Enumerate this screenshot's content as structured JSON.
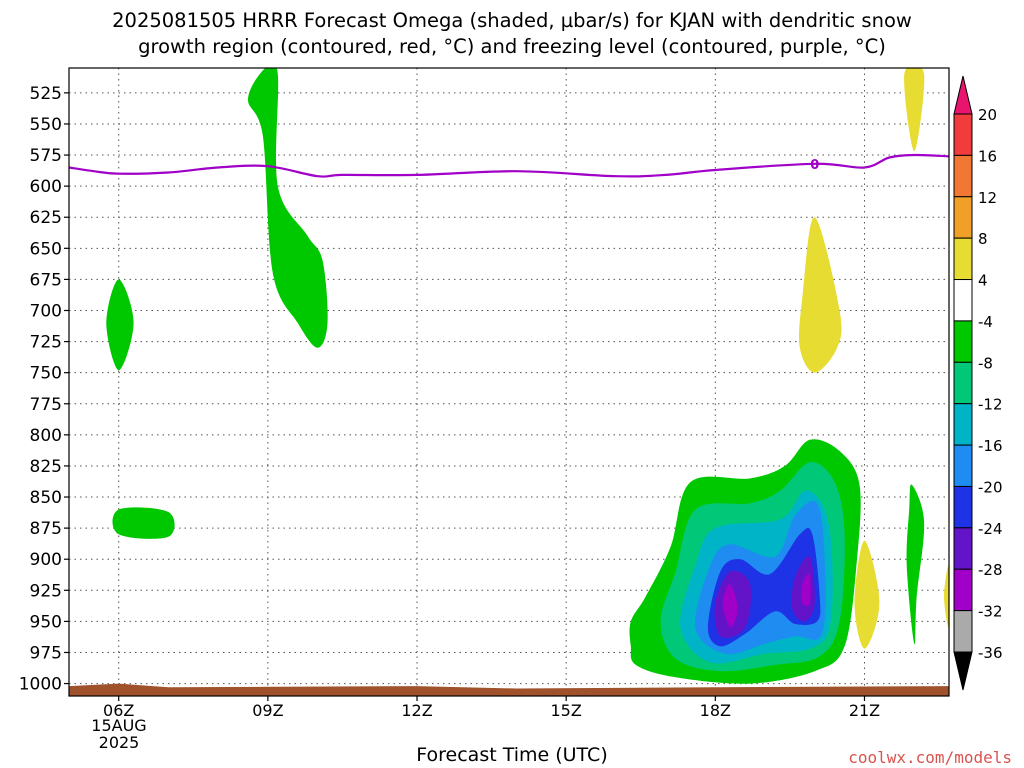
{
  "header": {
    "title_line1": "2025081505 HRRR Forecast Omega (shaded, µbar/s) for KJAN with dendritic snow",
    "title_line2": "growth region (contoured, red, °C) and freezing level (contoured, purple, °C)"
  },
  "footer": {
    "date_day": "15AUG",
    "date_year": "2025",
    "watermark": "coolwx.com/models"
  },
  "chart_data": {
    "type": "heatmap",
    "title": "2025081505 HRRR Forecast Omega (shaded, µbar/s) for KJAN with dendritic snow growth region (contoured, red, °C) and freezing level (contoured, purple, °C)",
    "xlabel": "Forecast Time (UTC)",
    "ylabel": "",
    "x_unit": "forecast hour (UTC)",
    "xlim": [
      5,
      22.7
    ],
    "y_unit": "hPa",
    "ylim": [
      1010,
      505
    ],
    "y_inverted": true,
    "grid": true,
    "x_ticks": [
      {
        "value": 6,
        "label": "06Z"
      },
      {
        "value": 9,
        "label": "09Z"
      },
      {
        "value": 12,
        "label": "12Z"
      },
      {
        "value": 15,
        "label": "15Z"
      },
      {
        "value": 18,
        "label": "18Z"
      },
      {
        "value": 21,
        "label": "21Z"
      }
    ],
    "y_ticks": [
      525,
      550,
      575,
      600,
      625,
      650,
      675,
      700,
      725,
      750,
      775,
      800,
      825,
      850,
      875,
      900,
      925,
      950,
      975,
      1000
    ],
    "colorbar": {
      "labels": [
        "20",
        "16",
        "12",
        "8",
        "4",
        "-4",
        "-8",
        "-12",
        "-16",
        "-20",
        "-24",
        "-28",
        "-32",
        "-36"
      ],
      "colors": [
        "#e8146e",
        "#f03c3c",
        "#f07832",
        "#f0a028",
        "#e6dc32",
        "#ffffff",
        "#00c800",
        "#00c878",
        "#00b4c8",
        "#1e8cf0",
        "#1e32e6",
        "#6414c8",
        "#a000c8",
        "#aaaaaa",
        "#000000"
      ]
    },
    "freezing_level": {
      "color": "#a000c8",
      "contour_label": "0",
      "points": [
        [
          5,
          585
        ],
        [
          5.5,
          588
        ],
        [
          6,
          590
        ],
        [
          7,
          589
        ],
        [
          8,
          585
        ],
        [
          9,
          584
        ],
        [
          10,
          592
        ],
        [
          10.5,
          591
        ],
        [
          12,
          591
        ],
        [
          14,
          588
        ],
        [
          16,
          592
        ],
        [
          17,
          591
        ],
        [
          18,
          587
        ],
        [
          20,
          582
        ],
        [
          21,
          585
        ],
        [
          21.5,
          577
        ],
        [
          22,
          575
        ],
        [
          22.7,
          576
        ]
      ]
    },
    "shaded_regions": [
      {
        "name": "Omega -4 to -8 (08Z-10Z, 505-730 hPa)",
        "color": "#00c800",
        "points": [
          [
            8.6,
            530
          ],
          [
            8.95,
            505
          ],
          [
            9.2,
            510
          ],
          [
            9.2,
            600
          ],
          [
            9.8,
            640
          ],
          [
            10.1,
            660
          ],
          [
            10.2,
            710
          ],
          [
            10,
            730
          ],
          [
            9.6,
            710
          ],
          [
            9.1,
            670
          ],
          [
            8.9,
            560
          ]
        ]
      },
      {
        "name": "Omega -4 to -8 (06Z, 700 hPa)",
        "color": "#00c800",
        "points": [
          [
            6,
            675
          ],
          [
            6.3,
            710
          ],
          [
            6,
            748
          ],
          [
            5.75,
            710
          ]
        ]
      },
      {
        "name": "Omega -4 to -8 (06Z-07Z, 865 hPa)",
        "color": "#00c800",
        "points": [
          [
            6,
            860
          ],
          [
            7,
            862
          ],
          [
            7,
            882
          ],
          [
            6,
            880
          ]
        ]
      },
      {
        "name": "Omega 4 to 8 (20Z, 700 hPa)",
        "color": "#e6dc32",
        "points": [
          [
            20,
            625
          ],
          [
            20.5,
            700
          ],
          [
            20.45,
            730
          ],
          [
            20,
            750
          ],
          [
            19.7,
            730
          ],
          [
            19.75,
            690
          ]
        ]
      },
      {
        "name": "Omega 4 to 8 (22Z, 520 hPa)",
        "color": "#e6dc32",
        "points": [
          [
            21.8,
            510
          ],
          [
            22.2,
            510
          ],
          [
            22,
            572
          ]
        ]
      },
      {
        "name": "Omega 4 to 8 (21Z, 930 hPa)",
        "color": "#e6dc32",
        "points": [
          [
            21,
            885
          ],
          [
            21.3,
            935
          ],
          [
            21,
            972
          ],
          [
            20.8,
            935
          ]
        ]
      },
      {
        "name": "Omega -4 to -8 (22Z, 890 hPa)",
        "color": "#00c800",
        "points": [
          [
            21.95,
            840
          ],
          [
            22.2,
            870
          ],
          [
            22.05,
            930
          ],
          [
            22,
            968
          ],
          [
            21.85,
            905
          ],
          [
            21.9,
            860
          ]
        ]
      },
      {
        "name": "Omega 4 to 8 (edge, 930 hPa)",
        "color": "#e6dc32",
        "points": [
          [
            22.7,
            905
          ],
          [
            22.7,
            955
          ],
          [
            22.6,
            930
          ]
        ]
      },
      {
        "name": "Omega -4 to -8 (16Z-21Z, 800-1000 hPa)",
        "color": "#00c800",
        "points": [
          [
            16.3,
            950
          ],
          [
            16.6,
            930
          ],
          [
            17.1,
            890
          ],
          [
            17.5,
            838
          ],
          [
            18.7,
            835
          ],
          [
            19.4,
            825
          ],
          [
            19.9,
            804
          ],
          [
            20.5,
            813
          ],
          [
            20.9,
            840
          ],
          [
            20.85,
            900
          ],
          [
            20.6,
            970
          ],
          [
            20,
            990
          ],
          [
            18.7,
            1000
          ],
          [
            17.2,
            995
          ],
          [
            16.4,
            985
          ],
          [
            16.3,
            970
          ]
        ]
      },
      {
        "name": "Omega -8 to -12",
        "color": "#00c878",
        "points": [
          [
            16.9,
            950
          ],
          [
            17.2,
            910
          ],
          [
            17.6,
            860
          ],
          [
            18.7,
            855
          ],
          [
            19.3,
            845
          ],
          [
            19.9,
            822
          ],
          [
            20.4,
            838
          ],
          [
            20.6,
            880
          ],
          [
            20.5,
            950
          ],
          [
            20.1,
            978
          ],
          [
            19.2,
            985
          ],
          [
            18.1,
            990
          ],
          [
            17.2,
            980
          ]
        ]
      },
      {
        "name": "Omega -12 to -16",
        "color": "#00b4c8",
        "points": [
          [
            17.3,
            955
          ],
          [
            17.6,
            905
          ],
          [
            18,
            875
          ],
          [
            19.3,
            868
          ],
          [
            19.8,
            845
          ],
          [
            20.2,
            860
          ],
          [
            20.35,
            900
          ],
          [
            20.3,
            955
          ],
          [
            19.9,
            972
          ],
          [
            19,
            976
          ],
          [
            17.9,
            983
          ]
        ]
      },
      {
        "name": "Omega -16 to -20",
        "color": "#1e8cf0",
        "points": [
          [
            17.6,
            955
          ],
          [
            17.9,
            905
          ],
          [
            18.3,
            888
          ],
          [
            19.2,
            898
          ],
          [
            19.6,
            865
          ],
          [
            20.05,
            855
          ],
          [
            20.2,
            900
          ],
          [
            20.15,
            960
          ],
          [
            19.6,
            962
          ],
          [
            19,
            968
          ],
          [
            18.2,
            976
          ]
        ]
      },
      {
        "name": "Omega -20 to -24",
        "color": "#1e32e6",
        "points": [
          [
            17.85,
            955
          ],
          [
            18.1,
            910
          ],
          [
            18.5,
            900
          ],
          [
            19.1,
            912
          ],
          [
            19.7,
            880
          ],
          [
            19.95,
            880
          ],
          [
            20.1,
            930
          ],
          [
            20.05,
            950
          ],
          [
            19.6,
            952
          ],
          [
            19.2,
            942
          ],
          [
            18.6,
            960
          ],
          [
            18.1,
            970
          ]
        ]
      },
      {
        "name": "Omega -24 to -28 (18Z)",
        "color": "#6414c8",
        "points": [
          [
            18,
            935
          ],
          [
            18.3,
            910
          ],
          [
            18.7,
            920
          ],
          [
            18.6,
            955
          ],
          [
            18.1,
            962
          ]
        ]
      },
      {
        "name": "Omega -24 to -28 (20Z)",
        "color": "#6414c8",
        "points": [
          [
            19.6,
            915
          ],
          [
            19.9,
            898
          ],
          [
            20,
            935
          ],
          [
            19.8,
            950
          ],
          [
            19.55,
            940
          ]
        ]
      },
      {
        "name": "Omega -28 to -32 (18Z)",
        "color": "#a000c8",
        "points": [
          [
            18.15,
            935
          ],
          [
            18.3,
            920
          ],
          [
            18.45,
            940
          ],
          [
            18.3,
            955
          ]
        ]
      },
      {
        "name": "Omega -28 to -32 (20Z)",
        "color": "#a000c8",
        "points": [
          [
            19.75,
            920
          ],
          [
            19.9,
            912
          ],
          [
            19.9,
            935
          ],
          [
            19.75,
            935
          ]
        ]
      },
      {
        "name": "Surface terrain",
        "color": "#a0522d",
        "points": [
          [
            5,
            1002
          ],
          [
            6,
            1000
          ],
          [
            7,
            1003
          ],
          [
            12,
            1002
          ],
          [
            14,
            1004
          ],
          [
            18,
            1003
          ],
          [
            22.7,
            1002
          ],
          [
            22.7,
            1010
          ],
          [
            5,
            1010
          ]
        ]
      }
    ]
  }
}
